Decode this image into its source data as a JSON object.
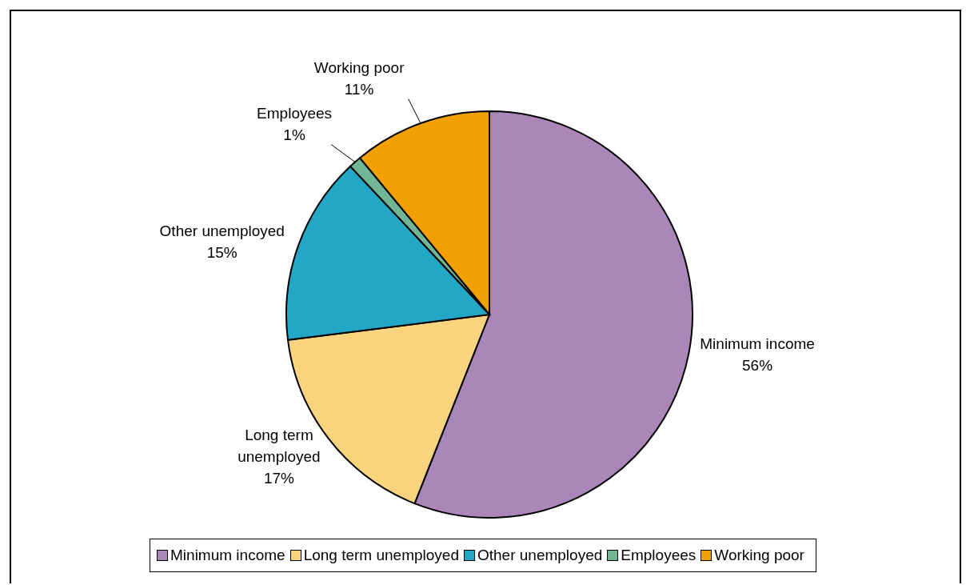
{
  "chart_data": {
    "type": "pie",
    "categories": [
      "Minimum income",
      "Long term unemployed",
      "Other unemployed",
      "Employees",
      "Working poor"
    ],
    "values": [
      56,
      17,
      15,
      1,
      11
    ],
    "value_labels": [
      "56%",
      "17%",
      "15%",
      "1%",
      "11%"
    ],
    "colors": [
      "#ab87b9",
      "#f9d47f",
      "#22a8c6",
      "#6fb596",
      "#f0a000"
    ],
    "legend": "bottom"
  }
}
